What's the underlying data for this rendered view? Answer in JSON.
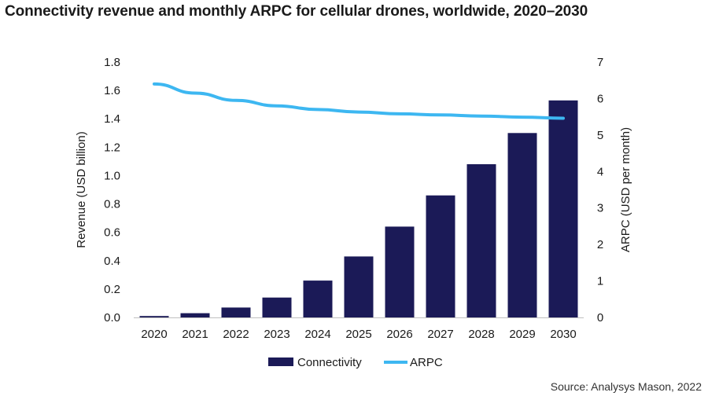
{
  "title": "Connectivity revenue and monthly ARPC for cellular drones, worldwide, 2020–2030",
  "source": "Source: Analysys Mason, 2022",
  "colors": {
    "bar": "#1b1a57",
    "line": "#3db7f1"
  },
  "chart_data": {
    "type": "bar",
    "title": "Connectivity revenue and monthly ARPC for cellular drones, worldwide, 2020–2030",
    "categories": [
      "2020",
      "2021",
      "2022",
      "2023",
      "2024",
      "2025",
      "2026",
      "2027",
      "2028",
      "2029",
      "2030"
    ],
    "series": [
      {
        "name": "Connectivity",
        "type": "bar",
        "axis": "left",
        "values": [
          0.01,
          0.03,
          0.07,
          0.14,
          0.26,
          0.43,
          0.64,
          0.86,
          1.08,
          1.3,
          1.53
        ]
      },
      {
        "name": "ARPC",
        "type": "line",
        "axis": "right",
        "values": [
          6.4,
          6.15,
          5.95,
          5.8,
          5.7,
          5.63,
          5.58,
          5.55,
          5.52,
          5.49,
          5.46
        ]
      }
    ],
    "ylabel": "Revenue (USD billion)",
    "ylim": [
      0,
      1.8
    ],
    "yticks": [
      "0.0",
      "0.2",
      "0.4",
      "0.6",
      "0.8",
      "1.0",
      "1.2",
      "1.4",
      "1.6",
      "1.8"
    ],
    "y2label": "ARPC (USD per month)",
    "y2lim": [
      0,
      7
    ],
    "y2ticks": [
      "0",
      "1",
      "2",
      "3",
      "4",
      "5",
      "6",
      "7"
    ],
    "grid": false,
    "legend": "bottom"
  }
}
